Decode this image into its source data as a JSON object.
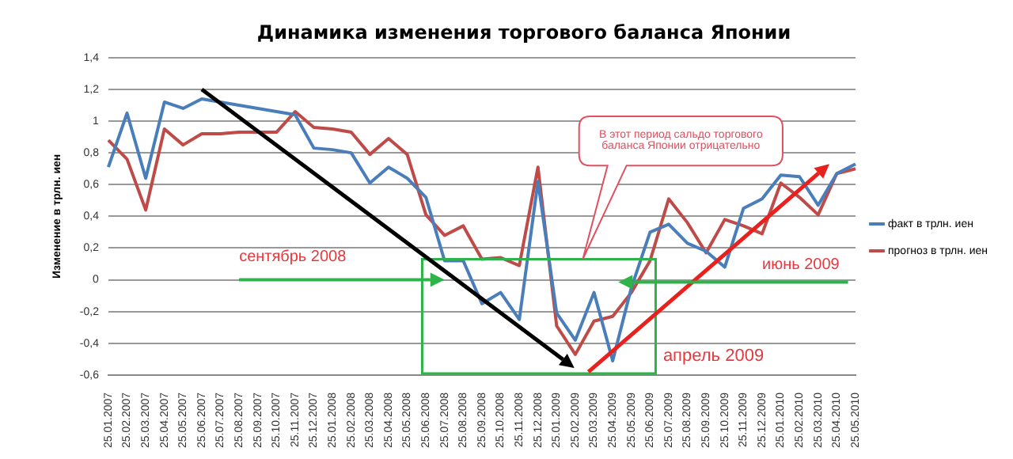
{
  "chart_data": {
    "type": "line",
    "title": "Динамика изменения торгового баланса Японии",
    "ylabel": "Изменение в трлн. иен",
    "categories": [
      "25.01.2007",
      "25.02.2007",
      "25.03.2007",
      "25.04.2007",
      "25.05.2007",
      "25.06.2007",
      "25.07.2007",
      "25.08.2007",
      "25.09.2007",
      "25.10.2007",
      "25.11.2007",
      "25.12.2007",
      "25.01.2008",
      "25.02.2008",
      "25.03.2008",
      "25.04.2008",
      "25.05.2008",
      "25.06.2008",
      "25.07.2008",
      "25.08.2008",
      "25.09.2008",
      "25.10.2008",
      "25.11.2008",
      "25.12.2008",
      "25.01.2009",
      "25.02.2009",
      "25.03.2009",
      "25.04.2009",
      "25.05.2009",
      "25.06.2009",
      "25.07.2009",
      "25.08.2009",
      "25.09.2009",
      "25.10.2009",
      "25.11.2009",
      "25.12.2009",
      "25.01.2010",
      "25.02.2010",
      "25.03.2010",
      "25.04.2010",
      "25.05.2010"
    ],
    "series": [
      {
        "name": "факт в трлн. иен",
        "color": "#4a7ebb",
        "values": [
          0.71,
          1.05,
          0.64,
          1.12,
          1.08,
          1.14,
          1.12,
          1.1,
          1.08,
          1.06,
          1.04,
          0.83,
          0.82,
          0.8,
          0.61,
          0.71,
          0.64,
          0.52,
          0.12,
          0.12,
          -0.15,
          -0.08,
          -0.25,
          0.62,
          -0.21,
          -0.38,
          -0.08,
          -0.51,
          -0.05,
          0.3,
          0.35,
          0.23,
          0.18,
          0.08,
          0.45,
          0.51,
          0.66,
          0.65,
          0.47,
          0.67,
          0.73
        ]
      },
      {
        "name": "прогноз в трлн. иен",
        "color": "#be4b48",
        "values": [
          0.88,
          0.76,
          0.44,
          0.95,
          0.85,
          0.92,
          0.92,
          0.93,
          0.93,
          0.93,
          1.06,
          0.96,
          0.95,
          0.93,
          0.79,
          0.89,
          0.79,
          0.41,
          0.28,
          0.34,
          0.13,
          0.14,
          0.09,
          0.71,
          -0.29,
          -0.47,
          -0.26,
          -0.23,
          -0.08,
          0.12,
          0.51,
          0.36,
          0.17,
          0.38,
          0.34,
          0.29,
          0.61,
          0.52,
          0.41,
          0.67,
          0.7
        ]
      }
    ],
    "ylim": [
      -0.6,
      1.4
    ],
    "yticks": [
      {
        "value": -0.6,
        "label": "-0,6"
      },
      {
        "value": -0.4,
        "label": "-0,4"
      },
      {
        "value": -0.2,
        "label": "-0,2"
      },
      0,
      {
        "value": 0.2,
        "label": "0,2"
      },
      {
        "value": 0.4,
        "label": "0,4"
      },
      {
        "value": 0.6,
        "label": "0,6"
      },
      {
        "value": 0.8,
        "label": "0,8"
      },
      1,
      {
        "value": 1.2,
        "label": "1,2"
      },
      {
        "value": 1.4,
        "label": "1,4"
      }
    ],
    "grid": "y",
    "legend": "right",
    "marker": "none",
    "line_style": "solid",
    "annotations": [
      "В этот период сальдо торгового баланса Японии отрицательно",
      "сентябрь 2008",
      "июнь 2009",
      "апрель 2009"
    ]
  }
}
